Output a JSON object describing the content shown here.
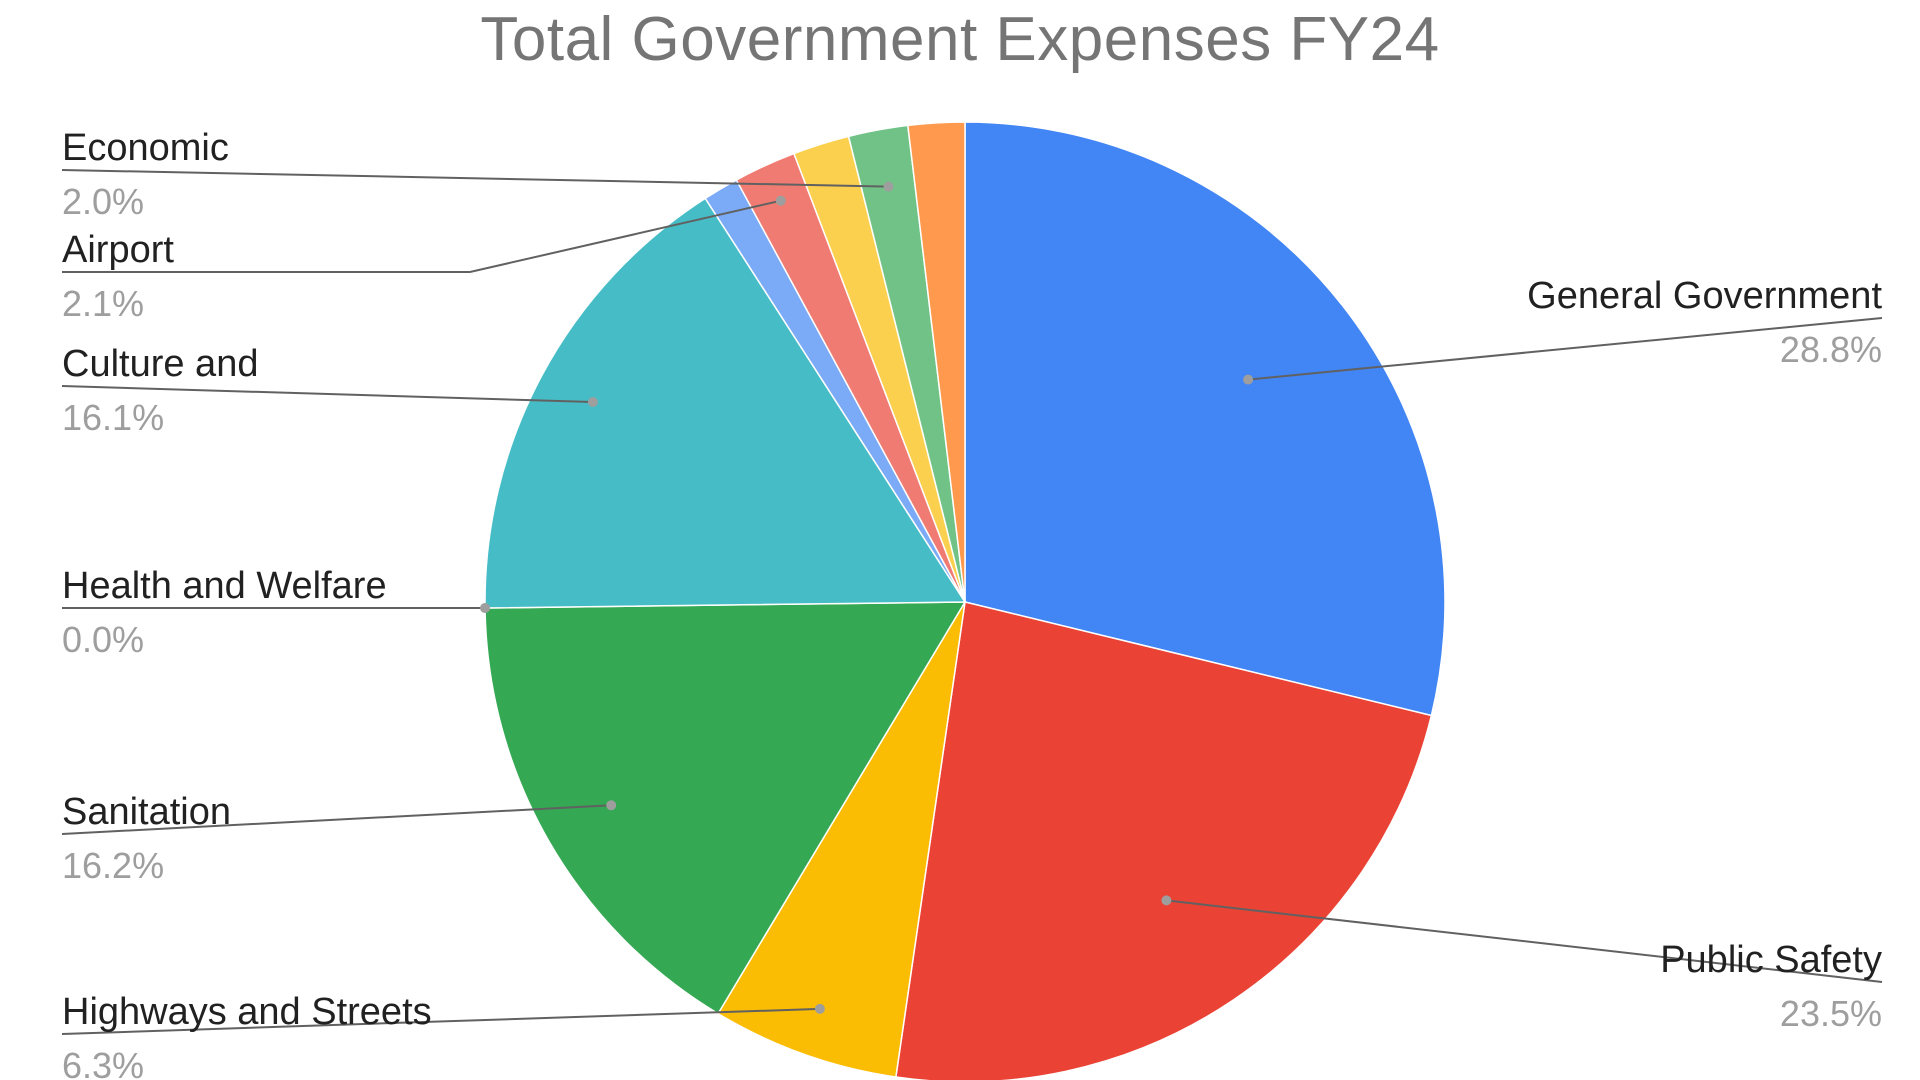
{
  "chart_data": {
    "type": "pie",
    "title": "Total Government Expenses FY24",
    "slices": [
      {
        "label": "General Government",
        "value": 28.8,
        "value_label": "28.8%",
        "color": "#4285f4"
      },
      {
        "label": "Public Safety",
        "value": 23.5,
        "value_label": "23.5%",
        "color": "#ea4335"
      },
      {
        "label": "Highways and Streets",
        "value": 6.3,
        "value_label": "6.3%",
        "color": "#fbbc04"
      },
      {
        "label": "Sanitation",
        "value": 16.2,
        "value_label": "16.2%",
        "color": "#34a853"
      },
      {
        "label": "Health and Welfare",
        "value": 0.0,
        "value_label": "0.0%",
        "color": "#ff6d01"
      },
      {
        "label": "Culture and",
        "value": 16.1,
        "value_label": "16.1%",
        "color": "#46bdc6"
      },
      {
        "label": "",
        "value": 1.2,
        "value_label": "",
        "color": "#7baaf7"
      },
      {
        "label": "Airport",
        "value": 2.1,
        "value_label": "2.1%",
        "color": "#f07b72"
      },
      {
        "label": "",
        "value": 1.9,
        "value_label": "",
        "color": "#fcd04f"
      },
      {
        "label": "Economic",
        "value": 2.0,
        "value_label": "2.0%",
        "color": "#71c287"
      },
      {
        "label": "",
        "value": 1.9,
        "value_label": "",
        "color": "#ff994d"
      }
    ],
    "legend": "none",
    "data_labels": "outside with leader lines"
  }
}
